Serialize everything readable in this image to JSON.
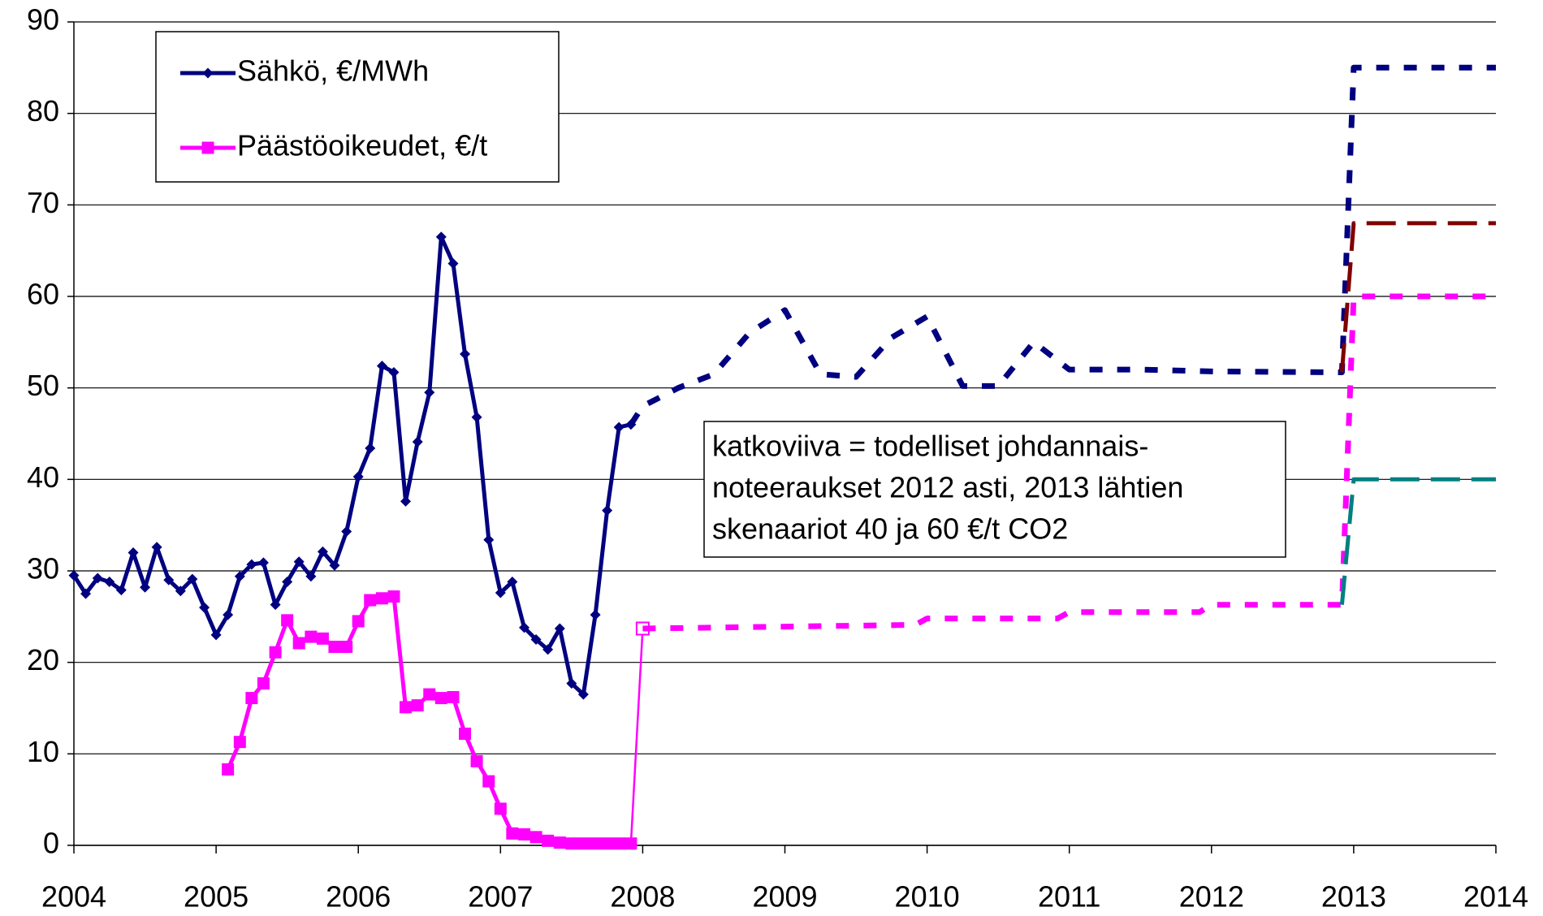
{
  "chart_data": {
    "type": "line",
    "xlim": [
      2004,
      2014
    ],
    "xticks": [
      2004,
      2005,
      2006,
      2007,
      2008,
      2009,
      2010,
      2011,
      2012,
      2013,
      2014
    ],
    "ylim": [
      0,
      90
    ],
    "yticks": [
      0,
      10,
      20,
      30,
      40,
      50,
      60,
      70,
      80,
      90
    ],
    "grid": true,
    "legend": "upper left",
    "annotation": [
      "katkoviiva = todelliset johdannais-",
      "noteeraukset 2012 asti, 2013 lähtien",
      "skenaariot 40 ja 60 €/t CO2"
    ],
    "series": [
      {
        "name": "Sähkö, €/MWh",
        "color": "#000080",
        "marker": "diamond",
        "style": "solid",
        "x": [
          2004,
          2004.083,
          2004.167,
          2004.25,
          2004.333,
          2004.417,
          2004.5,
          2004.583,
          2004.667,
          2004.75,
          2004.833,
          2004.917,
          2005,
          2005.083,
          2005.167,
          2005.25,
          2005.333,
          2005.417,
          2005.5,
          2005.583,
          2005.667,
          2005.75,
          2005.833,
          2005.917,
          2006,
          2006.083,
          2006.167,
          2006.25,
          2006.333,
          2006.417,
          2006.5,
          2006.583,
          2006.667,
          2006.75,
          2006.833,
          2006.917,
          2007,
          2007.083,
          2007.167,
          2007.25,
          2007.333,
          2007.417,
          2007.5,
          2007.583,
          2007.667,
          2007.75,
          2007.833,
          2007.917
        ],
        "values": [
          29.5,
          27.5,
          29.2,
          28.8,
          27.9,
          32,
          28.2,
          32.6,
          29,
          27.8,
          29.1,
          26,
          23,
          25.2,
          29.4,
          30.7,
          30.9,
          26.3,
          28.8,
          31,
          29.4,
          32.1,
          30.6,
          34.3,
          40.3,
          43.4,
          52.4,
          51.7,
          37.6,
          44.1,
          49.5,
          66.5,
          63.6,
          53.7,
          46.8,
          33.4,
          27.6,
          28.8,
          23.8,
          22.5,
          21.4,
          23.7,
          17.7,
          16.5,
          25.2,
          36.6,
          45.7,
          46
        ]
      },
      {
        "name": "Päästöoikeudet, €/t",
        "color": "#ff00ff",
        "marker": "square",
        "style": "solid",
        "x": [
          2005.083,
          2005.167,
          2005.25,
          2005.333,
          2005.417,
          2005.5,
          2005.583,
          2005.667,
          2005.75,
          2005.833,
          2005.917,
          2006,
          2006.083,
          2006.167,
          2006.25,
          2006.333,
          2006.417,
          2006.5,
          2006.583,
          2006.667,
          2006.75,
          2006.833,
          2006.917,
          2007,
          2007.083,
          2007.167,
          2007.25,
          2007.333,
          2007.417,
          2007.5,
          2007.583,
          2007.667,
          2007.75,
          2007.833,
          2007.917
        ],
        "values": [
          8.3,
          11.3,
          16.1,
          17.7,
          21.1,
          24.6,
          22.1,
          22.8,
          22.6,
          21.7,
          21.7,
          24.5,
          26.8,
          27,
          27.2,
          15.1,
          15.3,
          16.5,
          16.1,
          16.2,
          12.2,
          9.2,
          7,
          4,
          1.3,
          1.2,
          0.9,
          0.5,
          0.3,
          0.2,
          0.2,
          0.2,
          0.2,
          0.2,
          0.2
        ]
      },
      {
        "color": "#ff00ff",
        "marker": "open-square",
        "style": "thin",
        "x": [
          2007.917,
          2008
        ],
        "values": [
          0.2,
          23.7
        ]
      },
      {
        "color": "#000080",
        "style": "dotted",
        "x": [
          2007.917,
          2008,
          2008.25,
          2008.5,
          2008.75,
          2009,
          2009.25,
          2009.5,
          2009.75,
          2010,
          2010.25,
          2010.5,
          2010.75,
          2011,
          2011.5,
          2012,
          2012.917,
          2013,
          2014
        ],
        "values": [
          46,
          48,
          50,
          51.5,
          56,
          58.5,
          51.5,
          51.2,
          55.5,
          57.8,
          50.2,
          50.2,
          55,
          52,
          52,
          51.8,
          51.7,
          85,
          85
        ]
      },
      {
        "color": "#ff00ff",
        "style": "dotted",
        "x": [
          2008,
          2009.917,
          2010,
          2010.917,
          2011,
          2011.917,
          2012,
          2012.917,
          2013,
          2014
        ],
        "values": [
          23.7,
          24.1,
          24.8,
          24.8,
          25.5,
          25.5,
          26.3,
          26.3,
          60,
          60
        ]
      },
      {
        "color": "#800000",
        "style": "dashed",
        "x": [
          2012.917,
          2013,
          2014
        ],
        "values": [
          51.7,
          68,
          68
        ]
      },
      {
        "color": "#008080",
        "style": "dashed",
        "x": [
          2012.917,
          2013,
          2014
        ],
        "values": [
          26.3,
          40,
          40
        ]
      }
    ]
  }
}
